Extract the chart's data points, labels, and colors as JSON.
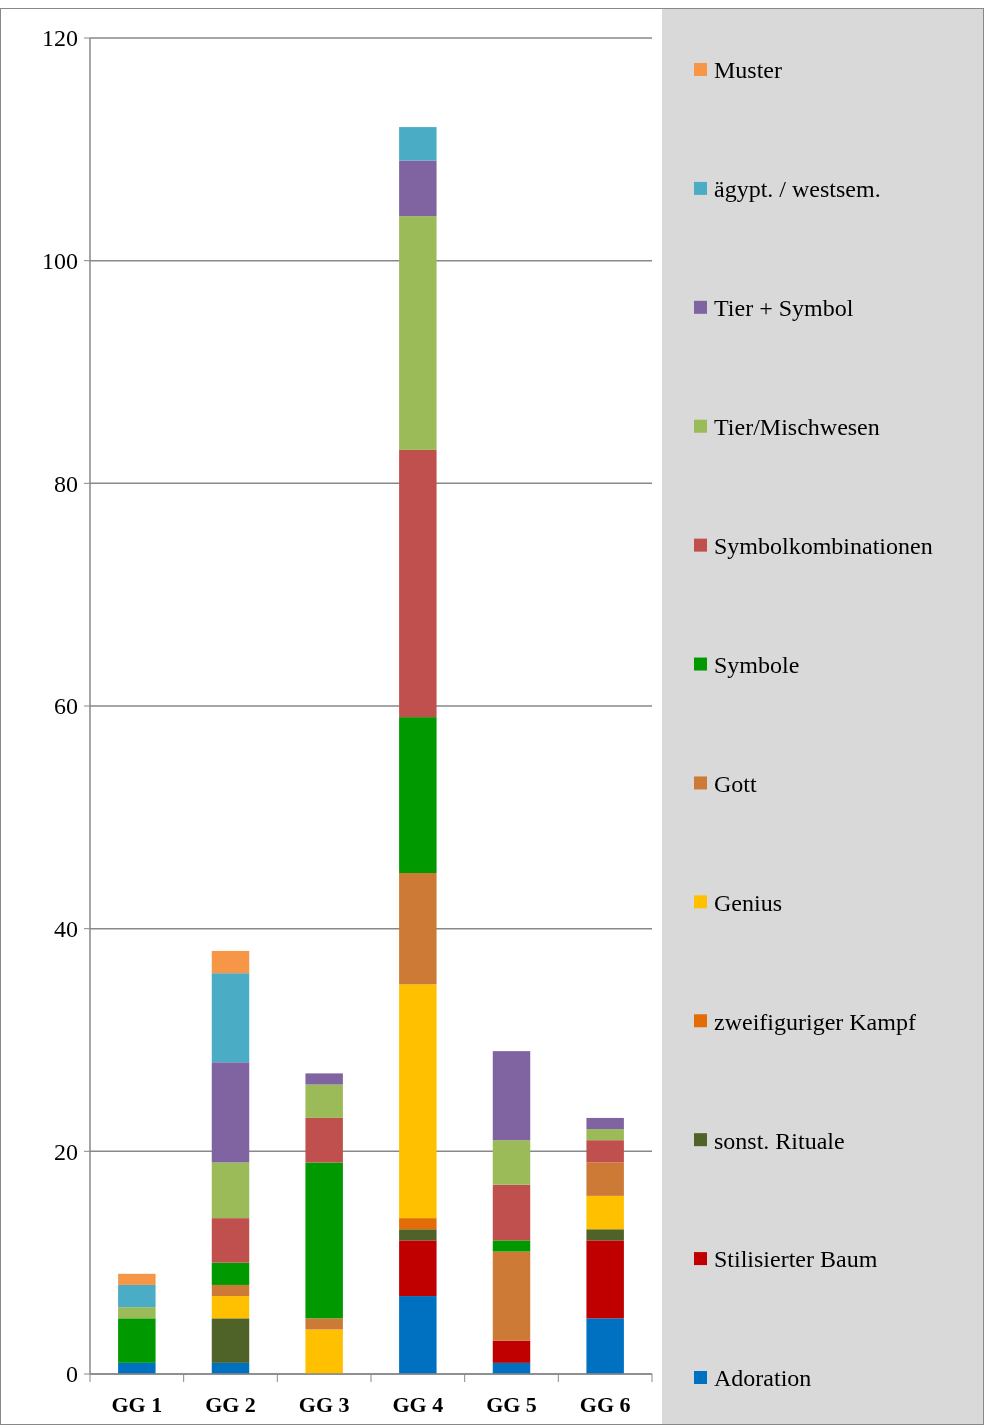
{
  "chart_data": {
    "type": "bar",
    "stacked": true,
    "categories": [
      "GG 1",
      "GG 2",
      "GG 3",
      "GG 4",
      "GG 5",
      "GG 6"
    ],
    "series": [
      {
        "name": "Adoration",
        "color": "#0070c0",
        "values": [
          1,
          1,
          0,
          7,
          1,
          5
        ]
      },
      {
        "name": "Stilisierter Baum",
        "color": "#c00000",
        "values": [
          0,
          0,
          0,
          5,
          2,
          7
        ]
      },
      {
        "name": "sonst. Rituale",
        "color": "#4f6228",
        "values": [
          0,
          4,
          0,
          1,
          0,
          1
        ]
      },
      {
        "name": "zweifiguriger Kampf",
        "color": "#e36c09",
        "values": [
          0,
          0,
          0,
          1,
          0,
          0
        ]
      },
      {
        "name": "Genius",
        "color": "#ffc000",
        "values": [
          0,
          2,
          4,
          21,
          0,
          3
        ]
      },
      {
        "name": "Gott",
        "color": "#cc7a36",
        "values": [
          0,
          1,
          1,
          10,
          8,
          3
        ]
      },
      {
        "name": "Symbole",
        "color": "#009900",
        "values": [
          4,
          2,
          14,
          14,
          1,
          0
        ]
      },
      {
        "name": "Symbolkombinationen",
        "color": "#c0504d",
        "values": [
          0,
          4,
          4,
          24,
          5,
          2
        ]
      },
      {
        "name": "Tier/Mischwesen",
        "color": "#9bbb59",
        "values": [
          1,
          5,
          3,
          21,
          4,
          1
        ]
      },
      {
        "name": "Tier + Symbol",
        "color": "#8064a2",
        "values": [
          0,
          9,
          1,
          5,
          8,
          1
        ]
      },
      {
        "name": "ägypt. / westsem.",
        "color": "#4bacc6",
        "values": [
          2,
          8,
          0,
          3,
          0,
          0
        ]
      },
      {
        "name": "Muster",
        "color": "#f79646",
        "values": [
          1,
          2,
          0,
          0,
          0,
          0
        ]
      }
    ],
    "ylim": [
      0,
      120
    ],
    "yticks": [
      0,
      20,
      40,
      60,
      80,
      100,
      120
    ],
    "grid": "y",
    "legend": "right"
  }
}
